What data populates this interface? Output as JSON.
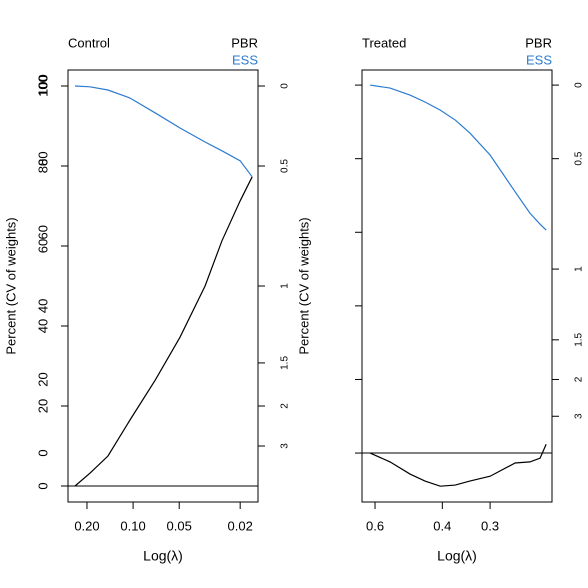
{
  "chart_data": [
    {
      "type": "line",
      "title": "Control",
      "xlabel": "Log(λ)",
      "ylabel": "Percent  (CV of weights)",
      "x": [
        0.2394,
        0.1913,
        0.1459,
        0.1048,
        0.0719,
        0.0494,
        0.0339,
        0.0263,
        0.02,
        0.0167
      ],
      "series": [
        {
          "name": "PBR",
          "color": "#000000",
          "values": [
            0,
            3.2,
            7.5,
            16.5,
            26.4,
            37.2,
            50,
            61.3,
            71.3,
            77.3
          ]
        },
        {
          "name": "ESS",
          "color": "#2b7bce",
          "values": [
            100,
            99.8,
            99,
            97,
            93.3,
            89.5,
            86,
            83.8,
            81.3,
            77.3
          ]
        }
      ],
      "xscale": "log",
      "xlim": [
        0.266,
        0.0153
      ],
      "xticks": [
        {
          "value": 0.2,
          "label": "0.20"
        },
        {
          "value": 0.1,
          "label": "0.10"
        },
        0.05,
        0.02
      ],
      "ylim": [
        -4,
        104
      ],
      "yticks": [
        0,
        20,
        40,
        60,
        80,
        100
      ],
      "y2scale": "ess",
      "y2ticks": [
        0,
        0.5,
        1,
        1.5,
        2,
        3
      ],
      "hline": 0
    },
    {
      "type": "line",
      "title": "Treated",
      "xlabel": "Log(λ)",
      "ylabel": "Percent  (CV of weights)",
      "x": [
        0.618,
        0.548,
        0.486,
        0.444,
        0.405,
        0.37,
        0.339,
        0.3,
        0.258,
        0.236,
        0.222,
        0.214
      ],
      "series": [
        {
          "name": "PBR",
          "color": "#000000",
          "values": [
            0,
            -2.4,
            -5.7,
            -7.6,
            -9,
            -8.7,
            -7.6,
            -6.3,
            -2.7,
            -2.4,
            -1.4,
            2.4
          ]
        },
        {
          "name": "ESS",
          "color": "#2b7bce",
          "values": [
            100,
            99.2,
            97.3,
            95.4,
            93.2,
            90.5,
            87,
            81,
            71,
            65.2,
            62.2,
            60.6
          ]
        }
      ],
      "xscale": "log",
      "xlim": [
        0.649,
        0.2066
      ],
      "xticks": [
        0.6,
        0.4,
        0.3
      ],
      "ylim": [
        -13.3,
        104.1
      ],
      "yticks": [
        0,
        20,
        40,
        60,
        80,
        100
      ],
      "y2scale": "ess",
      "y2ticks": [
        0,
        0.5,
        1,
        1.5,
        2,
        3
      ],
      "hline": 0
    }
  ]
}
